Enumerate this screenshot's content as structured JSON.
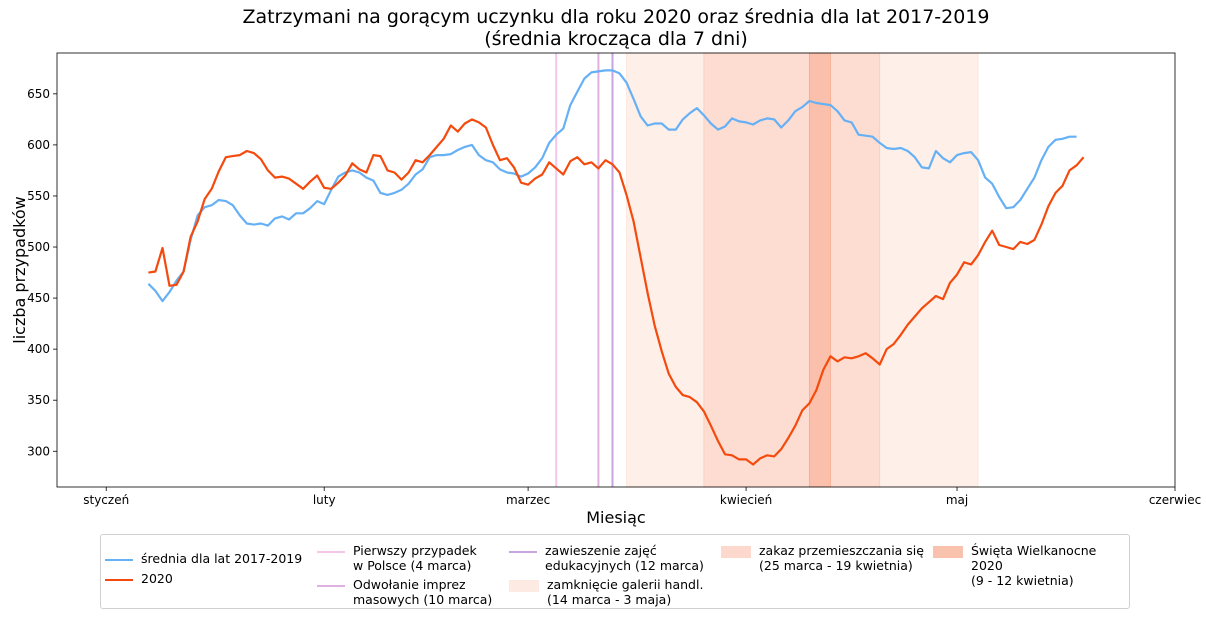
{
  "chart_data": {
    "type": "line",
    "title": "Zatrzymani na gorącym uczynku dla roku 2020 oraz średnia dla lat 2017-2019\n(średnia krocząca dla 7 dni)",
    "xlabel": "Miesiąc",
    "ylabel": "liczba przypadków",
    "x_unit": "day of year 2020",
    "xlim": [
      -7,
      152
    ],
    "ylim": [
      265,
      690
    ],
    "x_ticks": [
      {
        "day": 0,
        "label": "styczeń"
      },
      {
        "day": 31,
        "label": "luty"
      },
      {
        "day": 60,
        "label": "marzec"
      },
      {
        "day": 91,
        "label": "kwiecień"
      },
      {
        "day": 121,
        "label": "maj"
      },
      {
        "day": 152,
        "label": "czerwiec"
      }
    ],
    "y_ticks": [
      300,
      350,
      400,
      450,
      500,
      550,
      600,
      650
    ],
    "series": [
      {
        "name": "średnia dla lat 2017-2019",
        "color": "#66b0f5",
        "x_start": 6,
        "values": [
          464,
          457,
          447,
          456,
          467,
          476,
          507,
          531,
          539,
          541,
          546,
          545,
          541,
          531,
          523,
          522,
          523,
          521,
          528,
          530,
          527,
          533,
          533,
          538,
          545,
          542,
          556,
          569,
          573,
          575,
          573,
          568,
          565,
          553,
          551,
          553,
          556,
          562,
          571,
          576,
          588,
          590,
          590,
          591,
          595,
          598,
          600,
          590,
          585,
          583,
          576,
          573,
          572,
          569,
          572,
          578,
          587,
          602,
          610,
          616,
          639,
          652,
          665,
          671,
          672,
          673,
          673,
          670,
          661,
          645,
          628,
          619,
          621,
          621,
          615,
          615,
          625,
          631,
          636,
          629,
          621,
          615,
          618,
          626,
          623,
          622,
          620,
          624,
          626,
          625,
          617,
          624,
          633,
          637,
          643,
          641,
          640,
          639,
          633,
          624,
          622,
          610,
          609,
          608,
          602,
          597,
          596,
          597,
          594,
          588,
          578,
          577,
          594,
          587,
          583,
          590,
          592,
          593,
          585,
          568,
          562,
          549,
          538,
          539,
          546,
          557,
          568,
          585,
          598,
          605,
          606,
          608,
          608
        ]
      },
      {
        "name": "2020",
        "color": "#f54a0d",
        "x_start": 6,
        "values": [
          475,
          476,
          499,
          462,
          463,
          476,
          510,
          525,
          547,
          557,
          574,
          588,
          589,
          590,
          594,
          592,
          586,
          575,
          568,
          569,
          567,
          562,
          557,
          564,
          570,
          558,
          557,
          563,
          570,
          582,
          576,
          573,
          590,
          589,
          575,
          573,
          566,
          573,
          585,
          583,
          590,
          598,
          606,
          619,
          613,
          621,
          625,
          622,
          617,
          600,
          585,
          587,
          578,
          563,
          561,
          567,
          571,
          583,
          577,
          571,
          584,
          588,
          581,
          583,
          577,
          585,
          581,
          573,
          551,
          525,
          490,
          455,
          423,
          398,
          376,
          363,
          355,
          353,
          348,
          339,
          325,
          310,
          297,
          296,
          292,
          292,
          287,
          293,
          296,
          295,
          302,
          313,
          325,
          340,
          347,
          360,
          380,
          393,
          388,
          392,
          391,
          393,
          396,
          391,
          385,
          400,
          405,
          414,
          424,
          432,
          440,
          446,
          452,
          449,
          465,
          473,
          485,
          483,
          492,
          505,
          516,
          502,
          500,
          498,
          505,
          503,
          507,
          522,
          540,
          553,
          560,
          575,
          580,
          588
        ]
      }
    ],
    "vlines": [
      {
        "day": 64,
        "label": "Pierwszy przypadek\nw Polsce (4 marca)",
        "color": "#f6c6e8"
      },
      {
        "day": 70,
        "label": "Odwołanie imprez\nmasowych (10 marca)",
        "color": "#dfb1df"
      },
      {
        "day": 72,
        "label": "zawieszenie zajęć\nedukacyjnych (12 marca)",
        "color": "#c9a4de"
      }
    ],
    "spans": [
      {
        "from": 74,
        "to": 124,
        "label": "zamknięcie galerii handl.\n(14 marca - 3 maja)",
        "color": "#fde2d6",
        "opacity": 0.55
      },
      {
        "from": 85,
        "to": 110,
        "label": "zakaz przemieszczania się\n(25 marca - 19 kwietnia)",
        "color": "#fcc8b8",
        "opacity": 0.45
      },
      {
        "from": 100,
        "to": 103,
        "label": "Święta Wielkanocne 2020\n(9 - 12 kwietnia)",
        "color": "#f7a88a",
        "opacity": 0.55
      }
    ]
  },
  "legend": {
    "items": [
      {
        "kind": "line",
        "color": "#66b0f5",
        "label": "średnia dla lat 2017-2019"
      },
      {
        "kind": "line",
        "color": "#f54a0d",
        "label": "2020"
      },
      {
        "kind": "line",
        "color": "#f6c6e8",
        "label": "Pierwszy przypadek\nw Polsce (4 marca)"
      },
      {
        "kind": "line",
        "color": "#dfb1df",
        "label": "Odwołanie imprez\nmasowych (10 marca)"
      },
      {
        "kind": "line",
        "color": "#c9a4de",
        "label": "zawieszenie zajęć\nedukacyjnych (12 marca)"
      },
      {
        "kind": "patch",
        "color": "#fdebe3",
        "label": "zamknięcie galerii handl.\n(14 marca - 3 maja)"
      },
      {
        "kind": "patch",
        "color": "#fcd9cc",
        "label": "zakaz przemieszczania się\n(25 marca - 19 kwietnia)"
      },
      {
        "kind": "patch",
        "color": "#f9c2ad",
        "label": "Święta Wielkanocne 2020\n(9 - 12 kwietnia)"
      }
    ]
  }
}
